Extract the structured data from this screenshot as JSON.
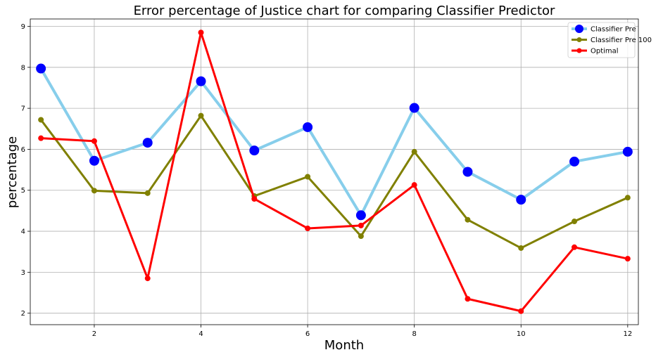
{
  "chart_data": {
    "type": "line",
    "title": "Error percentage of Justice chart for comparing Classifier Predictor",
    "xlabel": "Month",
    "ylabel": "percentage",
    "xlim": [
      0.8,
      12.2
    ],
    "ylim": [
      1.72,
      9.18
    ],
    "x_ticks": [
      2,
      4,
      6,
      8,
      10,
      12
    ],
    "y_ticks": [
      2,
      3,
      4,
      5,
      6,
      7,
      8,
      9
    ],
    "grid": true,
    "legend_position": "top-right",
    "x": [
      1,
      2,
      3,
      4,
      5,
      6,
      7,
      8,
      9,
      10,
      11,
      12
    ],
    "series": [
      {
        "name": "Classifier Pre",
        "values": [
          7.97,
          5.72,
          6.16,
          7.66,
          5.97,
          6.54,
          4.39,
          7.01,
          5.45,
          4.77,
          5.7,
          5.94
        ],
        "line_color": "#87ceeb",
        "marker_color": "#0000ff"
      },
      {
        "name": "Classifier Pre 100",
        "values": [
          6.72,
          4.99,
          4.93,
          6.82,
          4.86,
          5.33,
          3.88,
          5.94,
          4.28,
          3.59,
          4.24,
          4.82
        ],
        "line_color": "#808000",
        "marker_color": "#808000"
      },
      {
        "name": "Optimal",
        "values": [
          6.27,
          6.2,
          2.85,
          8.85,
          4.79,
          4.07,
          4.14,
          5.13,
          2.35,
          2.05,
          3.61,
          3.33
        ],
        "line_color": "#ff0000",
        "marker_color": "#ff0000"
      }
    ]
  }
}
